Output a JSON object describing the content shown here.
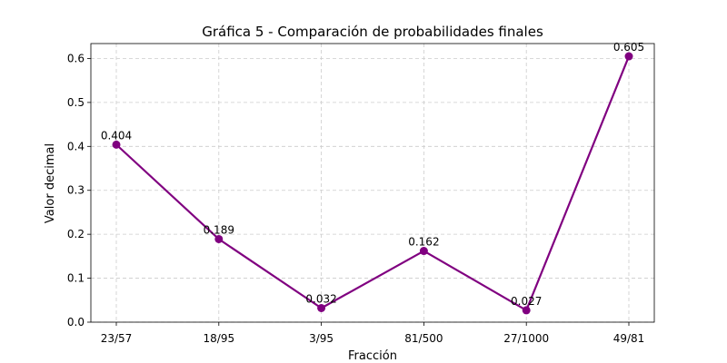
{
  "chart_data": {
    "type": "line",
    "title": "Gráfica 5 - Comparación de probabilidades finales",
    "xlabel": "Fracción",
    "ylabel": "Valor decimal",
    "categories": [
      "23/57",
      "18/95",
      "3/95",
      "81/500",
      "27/1000",
      "49/81"
    ],
    "values": [
      0.404,
      0.189,
      0.032,
      0.162,
      0.027,
      0.605
    ],
    "data_labels": [
      "0.404",
      "0.189",
      "0.032",
      "0.162",
      "0.027",
      "0.605"
    ],
    "ylim": [
      0,
      0.634
    ],
    "yticks": [
      0.0,
      0.1,
      0.2,
      0.3,
      0.4,
      0.5,
      0.6
    ],
    "ytick_labels": [
      "0.0",
      "0.1",
      "0.2",
      "0.3",
      "0.4",
      "0.5",
      "0.6"
    ],
    "grid": true,
    "color": "#800080",
    "marker": "circle"
  }
}
